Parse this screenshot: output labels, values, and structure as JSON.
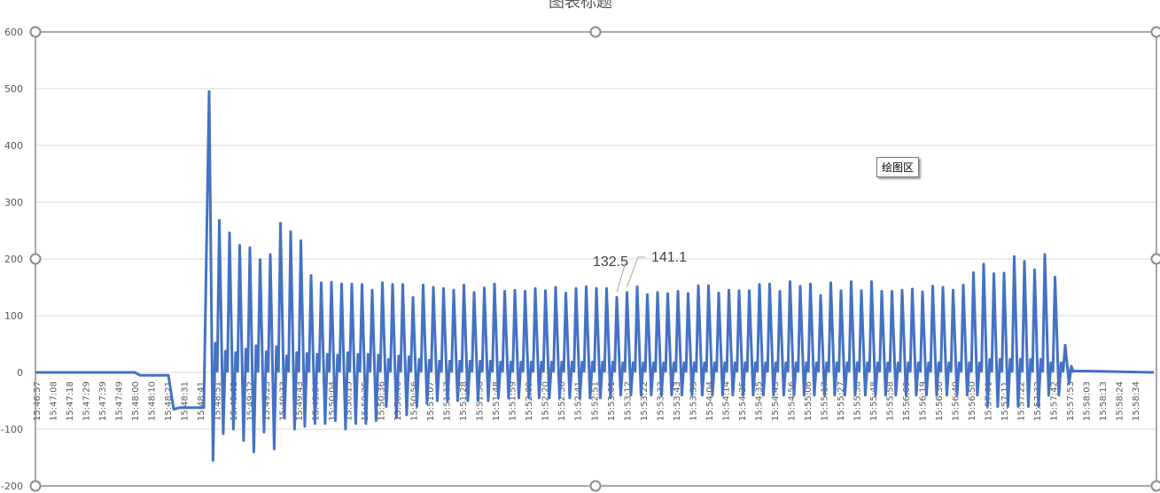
{
  "chart_data": {
    "type": "line",
    "title": "图表标题",
    "xlabel": "",
    "ylabel": "",
    "ylim": [
      -200,
      600
    ],
    "y_ticks": [
      -200,
      -100,
      0,
      100,
      200,
      300,
      400,
      500,
      600
    ],
    "grid": true,
    "legend": "none",
    "line_color": "#4472C4",
    "x_tick_labels": [
      "15:46:57",
      "15:47:08",
      "15:47:18",
      "15:47:29",
      "15:47:39",
      "15:47:49",
      "15:48:00",
      "15:48:10",
      "15:48:21",
      "15:48:31",
      "15:48:41",
      "15:48:51",
      "15:49:02",
      "15:49:12",
      "15:49:23",
      "15:49:33",
      "15:49:43",
      "15:49:54",
      "15:50:04",
      "15:50:15",
      "15:50:25",
      "15:50:36",
      "15:50:46",
      "15:50:56",
      "15:51:07",
      "15:51:17",
      "15:51:28",
      "15:51:38",
      "15:51:48",
      "15:51:59",
      "15:52:09",
      "15:52:20",
      "15:52:30",
      "15:52:41",
      "15:52:51",
      "15:53:01",
      "15:53:12",
      "15:53:22",
      "15:53:33",
      "15:53:43",
      "15:53:53",
      "15:54:04",
      "15:54:14",
      "15:54:25",
      "15:54:35",
      "15:54:45",
      "15:54:56",
      "15:55:06",
      "15:55:17",
      "15:55:27",
      "15:55:38",
      "15:55:48",
      "15:55:58",
      "15:56:09",
      "15:56:19",
      "15:56:30",
      "15:56:40",
      "15:56:50",
      "15:57:01",
      "15:57:11",
      "15:57:22",
      "15:57:32",
      "15:57:42",
      "15:57:53",
      "15:58:03",
      "15:58:13",
      "15:58:24",
      "15:58:34"
    ],
    "series": [
      {
        "pre_values": [
          0,
          -5,
          -65,
          -62
        ],
        "peaks": [
          495,
          268,
          246,
          224,
          220,
          199,
          208,
          263,
          248,
          232,
          171,
          158,
          159,
          156,
          156,
          155,
          145,
          158,
          155,
          155,
          132,
          154,
          150,
          148,
          145,
          154,
          141,
          149,
          156,
          143,
          145,
          143,
          148,
          144,
          150,
          140,
          148,
          151,
          148,
          148,
          132.5,
          141.1,
          151,
          137,
          141,
          139,
          143,
          139,
          153,
          153,
          140,
          145,
          144,
          144,
          155,
          156,
          143,
          160,
          152,
          156,
          136,
          158,
          144,
          160,
          144,
          160,
          143,
          143,
          145,
          147,
          142,
          152,
          150,
          145,
          154,
          176,
          191,
          174,
          175,
          204,
          196,
          181,
          208,
          168,
          48
        ],
        "troughs": [
          -155,
          -108,
          -100,
          -120,
          -140,
          -105,
          -135,
          -80,
          -100,
          -95,
          -90,
          -90,
          -85,
          -100,
          -90,
          -90,
          -85,
          -60,
          -80,
          -75,
          -60,
          -55,
          -50,
          -50,
          -50,
          -50,
          -50,
          -50,
          -45,
          -45,
          -45,
          -45,
          -45,
          -45,
          -45,
          -45,
          -45,
          -45,
          -45,
          -45,
          -40,
          -40,
          -40,
          -40,
          -40,
          -40,
          -40,
          -40,
          -40,
          -40,
          -40,
          -40,
          -40,
          -40,
          -40,
          -40,
          -40,
          -40,
          -40,
          -40,
          -40,
          -40,
          -40,
          -40,
          -40,
          -40,
          -40,
          -40,
          -40,
          -40,
          -40,
          -40,
          -40,
          -40,
          -40,
          -40,
          -60,
          -60,
          -60,
          -60,
          -60,
          -60,
          -40,
          -40,
          -20
        ],
        "post_values": [
          3,
          2,
          1,
          0
        ]
      }
    ],
    "data_labels": [
      "132.5",
      "141.1"
    ]
  },
  "plot_area_tooltip": "绘图区"
}
